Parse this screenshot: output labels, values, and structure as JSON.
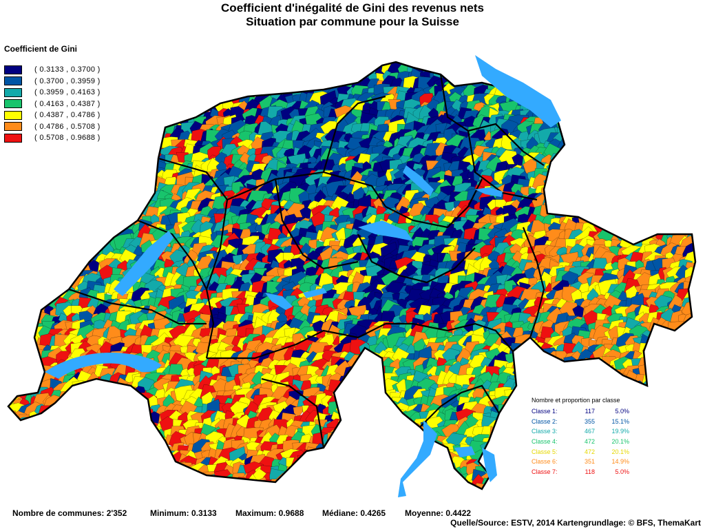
{
  "title": {
    "line1": "Coefficient d'inégalité de Gini des revenus nets",
    "line2": "Situation par commune pour la Suisse"
  },
  "legend": {
    "title": "Coefficient de Gini",
    "items": [
      {
        "label": "( 0.3133 , 0.3700 )",
        "color": "#000080"
      },
      {
        "label": "( 0.3700 , 0.3959 )",
        "color": "#0055a5"
      },
      {
        "label": "( 0.3959 , 0.4163 )",
        "color": "#13aaaa"
      },
      {
        "label": "( 0.4163 , 0.4387 )",
        "color": "#18c46c"
      },
      {
        "label": "( 0.4387 , 0.4786 )",
        "color": "#ffff00"
      },
      {
        "label": "( 0.4786 , 0.5708 )",
        "color": "#ff8c1a"
      },
      {
        "label": "( 0.5708 , 0.9688 )",
        "color": "#ee1111"
      }
    ]
  },
  "classes": {
    "title": "Nombre et proportion par classe",
    "rows": [
      {
        "name": "Classe  1:",
        "count": "117",
        "pct": "5.0%",
        "color": "#000080"
      },
      {
        "name": "Classe  2:",
        "count": "355",
        "pct": "15.1%",
        "color": "#0055a5"
      },
      {
        "name": "Classe  3:",
        "count": "467",
        "pct": "19.9%",
        "color": "#13aaaa"
      },
      {
        "name": "Classe  4:",
        "count": "472",
        "pct": "20.1%",
        "color": "#18c46c"
      },
      {
        "name": "Classe  5:",
        "count": "472",
        "pct": "20.1%",
        "color": "#ffff00"
      },
      {
        "name": "Classe  6:",
        "count": "351",
        "pct": "14.9%",
        "color": "#ff8c1a"
      },
      {
        "name": "Classe  7:",
        "count": "118",
        "pct": "5.0%",
        "color": "#ee1111"
      }
    ]
  },
  "stats": {
    "communes": "Nombre de communes: 2'352",
    "minimum": "Minimum: 0.3133",
    "maximum": "Maximum: 0.9688",
    "median": "Médiane: 0.4265",
    "mean": "Moyenne: 0.4422"
  },
  "source": "Quelle/Source: ESTV, 2014 Kartengrundlage: © BFS, ThemaKart",
  "colors": {
    "lake": "#33aaff",
    "border": "#000000"
  }
}
